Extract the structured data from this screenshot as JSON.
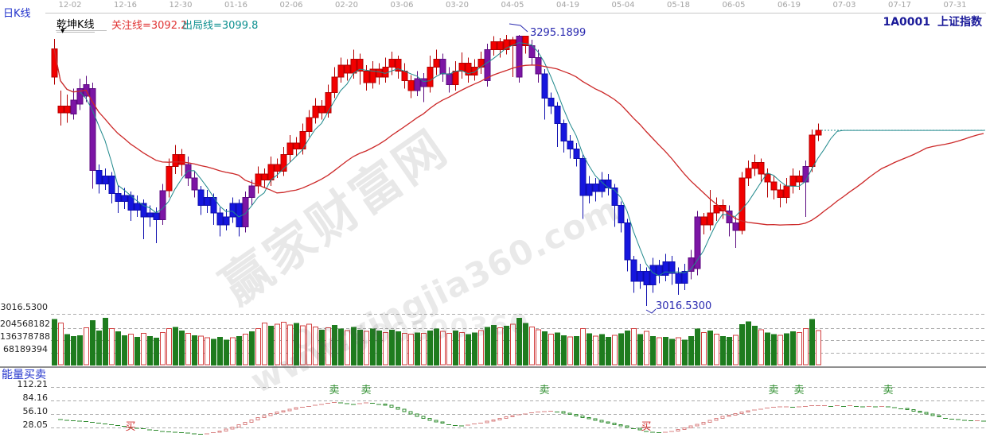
{
  "header": {
    "period_label": "日K线",
    "indicator_label": "乾坤K线",
    "dropdown_glyph": "▼",
    "attention_line_label": "关注线=3092.2",
    "exit_line_label": "出局线=3099.8",
    "symbol_code": "1A0001",
    "symbol_name": "上证指数"
  },
  "date_axis": {
    "labels": [
      "12-02",
      "12-16",
      "12-30",
      "01-16",
      "02-06",
      "02-20",
      "03-06",
      "03-20",
      "04-05",
      "04-19",
      "05-04",
      "05-18",
      "06-05",
      "06-19",
      "07-03",
      "07-17",
      "07-31"
    ]
  },
  "watermark": {
    "site_name": "赢家财富网",
    "site_url": "www.yingjia360.com",
    "qq": "QQ:100800360"
  },
  "chart_data": {
    "type": "candlestick",
    "title": "上证指数 日K线 乾坤K线",
    "price_axis": {
      "min": 3010,
      "max": 3300,
      "low_label": "3016.5300"
    },
    "annotations": {
      "high": "3295.1899",
      "low": "3016.5300",
      "high_index": 73,
      "low_index": 93
    },
    "flat_extension_price": 3197,
    "ma_periods": {
      "fast": 5,
      "slow": 30
    },
    "colors": {
      "up_candle": "#f20000",
      "signal_candle": "#7c15a5",
      "down_candle": "#1616de",
      "ma_fast": "#20898c",
      "ma_slow": "#cc2828",
      "extension_line": "#2a9090",
      "volume_up": "#1e7c1e",
      "volume_down_border": "#d24040",
      "energy_rise": "#d88080",
      "energy_fall": "#2e8b2e",
      "buy_marker": "#d03030",
      "sell_marker": "#2f8f2f",
      "annotation_text": "#2a2ab0"
    },
    "candles": [
      [
        "r",
        3252,
        3281,
        3291,
        3244,
        252,
        "g"
      ],
      [
        "r",
        3222,
        3215,
        3238,
        3202,
        230,
        "r"
      ],
      [
        "r",
        3215,
        3222,
        3234,
        3205,
        170,
        "g"
      ],
      [
        "p",
        3214,
        3228,
        3240,
        3208,
        160,
        "g"
      ],
      [
        "p",
        3224,
        3240,
        3250,
        3218,
        165,
        "g"
      ],
      [
        "p",
        3232,
        3244,
        3253,
        3226,
        205,
        "r"
      ],
      [
        "p",
        3240,
        3156,
        3246,
        3137,
        245,
        "g"
      ],
      [
        "b",
        3156,
        3142,
        3162,
        3132,
        190,
        "g"
      ],
      [
        "b",
        3142,
        3150,
        3158,
        3136,
        258,
        "g"
      ],
      [
        "b",
        3150,
        3132,
        3154,
        3122,
        200,
        "r"
      ],
      [
        "b",
        3132,
        3124,
        3140,
        3112,
        185,
        "g"
      ],
      [
        "b",
        3124,
        3130,
        3138,
        3116,
        165,
        "g"
      ],
      [
        "b",
        3130,
        3115,
        3134,
        3104,
        170,
        "r"
      ],
      [
        "b",
        3115,
        3122,
        3130,
        3108,
        155,
        "g"
      ],
      [
        "b",
        3122,
        3108,
        3126,
        3085,
        175,
        "r"
      ],
      [
        "b",
        3108,
        3112,
        3120,
        3098,
        160,
        "g"
      ],
      [
        "b",
        3112,
        3105,
        3118,
        3081,
        150,
        "g"
      ],
      [
        "p",
        3105,
        3135,
        3142,
        3100,
        180,
        "r"
      ],
      [
        "r",
        3135,
        3160,
        3168,
        3128,
        200,
        "r"
      ],
      [
        "r",
        3160,
        3172,
        3182,
        3152,
        210,
        "g"
      ],
      [
        "r",
        3172,
        3162,
        3178,
        3150,
        190,
        "g"
      ],
      [
        "p",
        3162,
        3148,
        3170,
        3140,
        175,
        "r"
      ],
      [
        "p",
        3148,
        3136,
        3155,
        3128,
        165,
        "g"
      ],
      [
        "b",
        3136,
        3120,
        3140,
        3110,
        160,
        "r"
      ],
      [
        "b",
        3120,
        3128,
        3136,
        3112,
        150,
        "r"
      ],
      [
        "b",
        3128,
        3112,
        3132,
        3100,
        145,
        "g"
      ],
      [
        "b",
        3112,
        3100,
        3118,
        3088,
        155,
        "g"
      ],
      [
        "b",
        3100,
        3108,
        3116,
        3094,
        140,
        "g"
      ],
      [
        "b",
        3108,
        3122,
        3128,
        3102,
        150,
        "r"
      ],
      [
        "b",
        3122,
        3098,
        3126,
        3088,
        160,
        "g"
      ],
      [
        "p",
        3098,
        3128,
        3134,
        3092,
        170,
        "r"
      ],
      [
        "p",
        3128,
        3140,
        3146,
        3120,
        185,
        "g"
      ],
      [
        "r",
        3140,
        3152,
        3160,
        3132,
        200,
        "r"
      ],
      [
        "r",
        3152,
        3146,
        3158,
        3138,
        230,
        "r"
      ],
      [
        "r",
        3146,
        3162,
        3170,
        3140,
        215,
        "g"
      ],
      [
        "r",
        3162,
        3155,
        3168,
        3148,
        225,
        "r"
      ],
      [
        "r",
        3155,
        3172,
        3180,
        3150,
        235,
        "r"
      ],
      [
        "r",
        3172,
        3184,
        3192,
        3165,
        220,
        "r"
      ],
      [
        "r",
        3184,
        3178,
        3190,
        3170,
        230,
        "g"
      ],
      [
        "r",
        3178,
        3196,
        3204,
        3172,
        215,
        "r"
      ],
      [
        "r",
        3196,
        3210,
        3218,
        3190,
        225,
        "r"
      ],
      [
        "r",
        3210,
        3222,
        3230,
        3204,
        210,
        "r"
      ],
      [
        "r",
        3222,
        3215,
        3228,
        3208,
        195,
        "g"
      ],
      [
        "r",
        3215,
        3236,
        3244,
        3210,
        205,
        "r"
      ],
      [
        "r",
        3236,
        3252,
        3262,
        3230,
        220,
        "g"
      ],
      [
        "r",
        3252,
        3264,
        3272,
        3246,
        200,
        "g"
      ],
      [
        "r",
        3264,
        3256,
        3270,
        3248,
        190,
        "r"
      ],
      [
        "r",
        3256,
        3270,
        3280,
        3250,
        210,
        "g"
      ],
      [
        "r",
        3270,
        3258,
        3276,
        3244,
        195,
        "g"
      ],
      [
        "r",
        3258,
        3246,
        3264,
        3238,
        185,
        "r"
      ],
      [
        "r",
        3246,
        3260,
        3268,
        3240,
        200,
        "g"
      ],
      [
        "r",
        3260,
        3252,
        3266,
        3244,
        190,
        "g"
      ],
      [
        "r",
        3252,
        3262,
        3272,
        3246,
        180,
        "r"
      ],
      [
        "r",
        3262,
        3270,
        3278,
        3254,
        195,
        "g"
      ],
      [
        "r",
        3270,
        3258,
        3274,
        3250,
        185,
        "g"
      ],
      [
        "r",
        3258,
        3248,
        3266,
        3240,
        175,
        "r"
      ],
      [
        "r",
        3248,
        3238,
        3254,
        3230,
        170,
        "r"
      ],
      [
        "p",
        3238,
        3250,
        3258,
        3232,
        180,
        "g"
      ],
      [
        "p",
        3250,
        3242,
        3256,
        3226,
        175,
        "r"
      ],
      [
        "r",
        3242,
        3262,
        3274,
        3236,
        190,
        "g"
      ],
      [
        "r",
        3262,
        3270,
        3280,
        3254,
        200,
        "g"
      ],
      [
        "p",
        3270,
        3255,
        3276,
        3247,
        185,
        "r"
      ],
      [
        "p",
        3255,
        3244,
        3262,
        3236,
        175,
        "r"
      ],
      [
        "r",
        3244,
        3258,
        3268,
        3238,
        190,
        "g"
      ],
      [
        "r",
        3258,
        3266,
        3277,
        3250,
        180,
        "r"
      ],
      [
        "r",
        3266,
        3254,
        3272,
        3246,
        170,
        "g"
      ],
      [
        "r",
        3254,
        3262,
        3270,
        3248,
        180,
        "g"
      ],
      [
        "r",
        3262,
        3270,
        3278,
        3255,
        190,
        "r"
      ],
      [
        "p",
        3248,
        3280,
        3286,
        3242,
        210,
        "g"
      ],
      [
        "r",
        3280,
        3288,
        3294,
        3274,
        220,
        "g"
      ],
      [
        "r",
        3288,
        3280,
        3292,
        3272,
        205,
        "r"
      ],
      [
        "r",
        3280,
        3290,
        3295,
        3275,
        215,
        "g"
      ],
      [
        "r",
        3290,
        3284,
        3293,
        3252,
        225,
        "r"
      ],
      [
        "p",
        3252,
        3294,
        3295.19,
        3246,
        258,
        "g"
      ],
      [
        "r",
        3294,
        3284,
        3294,
        3276,
        230,
        "g"
      ],
      [
        "p",
        3284,
        3272,
        3290,
        3264,
        210,
        "r"
      ],
      [
        "p",
        3272,
        3255,
        3280,
        3246,
        195,
        "r"
      ],
      [
        "b",
        3255,
        3230,
        3260,
        3208,
        185,
        "g"
      ],
      [
        "b",
        3230,
        3222,
        3236,
        3214,
        170,
        "r"
      ],
      [
        "b",
        3222,
        3204,
        3226,
        3180,
        180,
        "g"
      ],
      [
        "b",
        3204,
        3186,
        3208,
        3174,
        165,
        "g"
      ],
      [
        "b",
        3186,
        3178,
        3192,
        3168,
        155,
        "r"
      ],
      [
        "b",
        3178,
        3168,
        3184,
        3160,
        160,
        "g"
      ],
      [
        "b",
        3168,
        3130,
        3172,
        3106,
        200,
        "r"
      ],
      [
        "b",
        3130,
        3142,
        3150,
        3122,
        175,
        "g"
      ],
      [
        "b",
        3142,
        3134,
        3148,
        3124,
        160,
        "r"
      ],
      [
        "b",
        3134,
        3146,
        3154,
        3128,
        170,
        "g"
      ],
      [
        "b",
        3146,
        3138,
        3152,
        3130,
        155,
        "g"
      ],
      [
        "b",
        3138,
        3120,
        3142,
        3098,
        165,
        "r"
      ],
      [
        "b",
        3120,
        3102,
        3124,
        3092,
        175,
        "g"
      ],
      [
        "b",
        3102,
        3064,
        3106,
        3052,
        190,
        "g"
      ],
      [
        "b",
        3064,
        3042,
        3068,
        3030,
        200,
        "r"
      ],
      [
        "b",
        3042,
        3052,
        3060,
        3034,
        170,
        "g"
      ],
      [
        "b",
        3052,
        3038,
        3056,
        3016.53,
        185,
        "r"
      ],
      [
        "b",
        3038,
        3058,
        3066,
        3030,
        160,
        "g"
      ],
      [
        "b",
        3058,
        3048,
        3064,
        3040,
        150,
        "r"
      ],
      [
        "b",
        3048,
        3062,
        3070,
        3042,
        155,
        "g"
      ],
      [
        "b",
        3062,
        3050,
        3068,
        3038,
        145,
        "g"
      ],
      [
        "b",
        3050,
        3040,
        3056,
        3028,
        150,
        "r"
      ],
      [
        "b",
        3040,
        3052,
        3060,
        3033,
        140,
        "g"
      ],
      [
        "p",
        3052,
        3066,
        3074,
        3044,
        160,
        "g"
      ],
      [
        "p",
        3055,
        3108,
        3114,
        3048,
        200,
        "g"
      ],
      [
        "r",
        3108,
        3100,
        3112,
        3090,
        180,
        "r"
      ],
      [
        "r",
        3100,
        3112,
        3136,
        3094,
        190,
        "g"
      ],
      [
        "r",
        3112,
        3120,
        3128,
        3104,
        170,
        "r"
      ],
      [
        "r",
        3120,
        3114,
        3126,
        3106,
        160,
        "g"
      ],
      [
        "p",
        3114,
        3102,
        3120,
        3088,
        155,
        "g"
      ],
      [
        "p",
        3102,
        3094,
        3108,
        3076,
        165,
        "r"
      ],
      [
        "r",
        3094,
        3148,
        3154,
        3090,
        225,
        "g"
      ],
      [
        "r",
        3148,
        3158,
        3166,
        3140,
        240,
        "g"
      ],
      [
        "r",
        3158,
        3164,
        3172,
        3150,
        215,
        "g"
      ],
      [
        "r",
        3164,
        3152,
        3168,
        3144,
        195,
        "r"
      ],
      [
        "r",
        3152,
        3144,
        3158,
        3128,
        180,
        "g"
      ],
      [
        "r",
        3144,
        3136,
        3150,
        3126,
        170,
        "g"
      ],
      [
        "r",
        3136,
        3128,
        3142,
        3118,
        165,
        "r"
      ],
      [
        "r",
        3128,
        3140,
        3148,
        3122,
        175,
        "g"
      ],
      [
        "r",
        3140,
        3150,
        3158,
        3132,
        185,
        "g"
      ],
      [
        "r",
        3150,
        3144,
        3156,
        3136,
        180,
        "r"
      ],
      [
        "p",
        3144,
        3160,
        3166,
        3108,
        200,
        "r"
      ],
      [
        "r",
        3160,
        3192,
        3198,
        3154,
        252,
        "g"
      ],
      [
        "r",
        3192,
        3197,
        3204,
        3186,
        190,
        "r"
      ]
    ],
    "volume": {
      "axis_labels": [
        "204568182",
        "136378788",
        "68189394"
      ],
      "grid_unit": 68189394,
      "bar_unit": 1000000
    },
    "energy": {
      "title": "能量买卖",
      "axis_labels": [
        "112.21",
        "84.16",
        "56.10",
        "28.05"
      ],
      "grid_values": [
        112.21,
        84.16,
        56.1,
        28.05
      ],
      "values": [
        46,
        45,
        44,
        43,
        42,
        41,
        40,
        38,
        36,
        35,
        33,
        31,
        29,
        27,
        26,
        24,
        23,
        21,
        20,
        19,
        18,
        17,
        16,
        15,
        16,
        18,
        21,
        25,
        29,
        34,
        39,
        44,
        49,
        53,
        57,
        60,
        63,
        66,
        69,
        71,
        73,
        75,
        77,
        79,
        81,
        80,
        78,
        77,
        78,
        80,
        79,
        77,
        74,
        70,
        66,
        61,
        56,
        51,
        47,
        43,
        40,
        37,
        35,
        33,
        32,
        34,
        36,
        38,
        41,
        44,
        47,
        50,
        53,
        55,
        57,
        59,
        61,
        62,
        63,
        61,
        58,
        55,
        52,
        49,
        46,
        43,
        40,
        37,
        34,
        31,
        28,
        26,
        23,
        21,
        19,
        18,
        19,
        21,
        24,
        27,
        31,
        35,
        39,
        43,
        47,
        51,
        54,
        57,
        60,
        63,
        65,
        67,
        69,
        71,
        72,
        72,
        71,
        72,
        73,
        74,
        74,
        74,
        73,
        74,
        73,
        74,
        73,
        72,
        73,
        72,
        73,
        72,
        70,
        68,
        65,
        62,
        59,
        56,
        53,
        50,
        48,
        46,
        45,
        44,
        43,
        43,
        42
      ],
      "markers": [
        {
          "i": 12,
          "t": "买"
        },
        {
          "i": 44,
          "t": "卖"
        },
        {
          "i": 49,
          "t": "卖"
        },
        {
          "i": 77,
          "t": "卖"
        },
        {
          "i": 93,
          "t": "买"
        },
        {
          "i": 113,
          "t": "卖"
        },
        {
          "i": 117,
          "t": "卖"
        },
        {
          "i": 131,
          "t": "卖"
        }
      ]
    }
  }
}
